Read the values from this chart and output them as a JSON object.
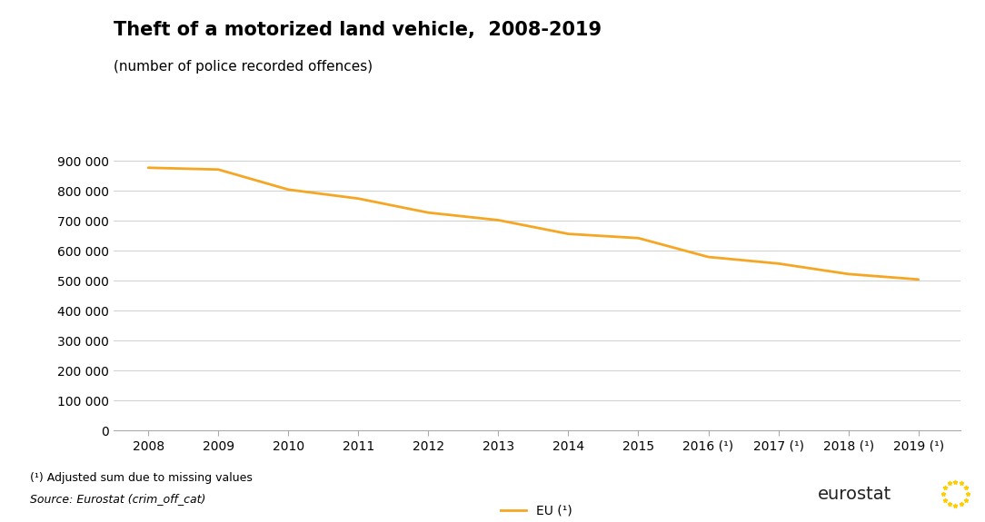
{
  "title": "Theft of a motorized land vehicle,  2008-2019",
  "subtitle": "(number of police recorded offences)",
  "x_labels": [
    "2008",
    "2009",
    "2010",
    "2011",
    "2012",
    "2013",
    "2014",
    "2015",
    "2016 (¹)",
    "2017 (¹)",
    "2018 (¹)",
    "2019 (¹)"
  ],
  "years": [
    2008,
    2009,
    2010,
    2011,
    2012,
    2013,
    2014,
    2015,
    2016,
    2017,
    2018,
    2019
  ],
  "values": [
    878000,
    872000,
    805000,
    775000,
    728000,
    703000,
    657000,
    643000,
    580000,
    558000,
    523000,
    505000
  ],
  "line_color": "#F5A623",
  "background_color": "#ffffff",
  "grid_color": "#d0d0d0",
  "ylim": [
    0,
    950000
  ],
  "yticks": [
    0,
    100000,
    200000,
    300000,
    400000,
    500000,
    600000,
    700000,
    800000,
    900000
  ],
  "legend_label": "EU (¹)",
  "footnote1": "(¹) Adjusted sum due to missing values",
  "footnote2": "Source: Eurostat (crim_off_cat)",
  "eurostat_text": "eurostat",
  "euro_blue": "#003399",
  "euro_yellow": "#FFCC00",
  "title_fontsize": 15,
  "subtitle_fontsize": 11,
  "tick_fontsize": 10,
  "legend_fontsize": 10,
  "footnote_fontsize": 9
}
